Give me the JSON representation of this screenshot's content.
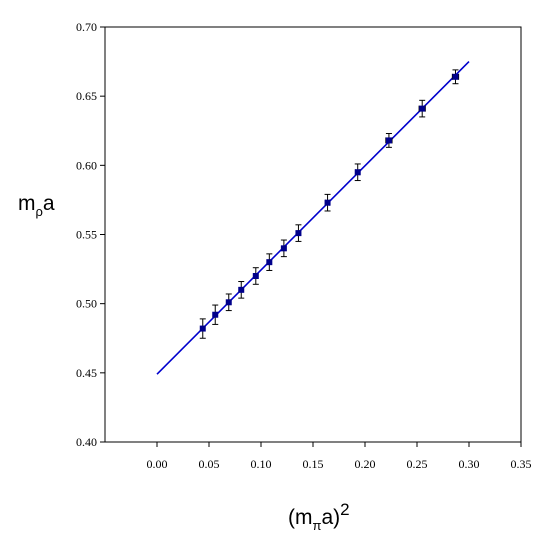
{
  "chart_data": {
    "type": "scatter",
    "xlabel": {
      "base": "(m",
      "sub": "π",
      "mid": "a)",
      "sup": "2"
    },
    "ylabel": {
      "base": "m",
      "sub": "ρ",
      "tail": "a"
    },
    "xlim": [
      -0.05,
      0.35
    ],
    "ylim": [
      0.4,
      0.7
    ],
    "x_ticks": [
      "0.00",
      "0.05",
      "0.10",
      "0.15",
      "0.20",
      "0.25",
      "0.30",
      "0.35"
    ],
    "y_ticks": [
      "0.40",
      "0.45",
      "0.50",
      "0.55",
      "0.60",
      "0.65",
      "0.70"
    ],
    "grid": false,
    "series": [
      {
        "type": "scatter",
        "color": "#00008b",
        "points": [
          {
            "x": 0.044,
            "y": 0.482,
            "yerr": 0.007,
            "xerr": 0.0
          },
          {
            "x": 0.056,
            "y": 0.492,
            "yerr": 0.007,
            "xerr": 0.0
          },
          {
            "x": 0.069,
            "y": 0.501,
            "yerr": 0.006,
            "xerr": 0.0
          },
          {
            "x": 0.081,
            "y": 0.51,
            "yerr": 0.006,
            "xerr": 0.0
          },
          {
            "x": 0.095,
            "y": 0.52,
            "yerr": 0.006,
            "xerr": 0.0
          },
          {
            "x": 0.108,
            "y": 0.53,
            "yerr": 0.006,
            "xerr": 0.0
          },
          {
            "x": 0.122,
            "y": 0.54,
            "yerr": 0.006,
            "xerr": 0.0
          },
          {
            "x": 0.136,
            "y": 0.551,
            "yerr": 0.006,
            "xerr": 0.0
          },
          {
            "x": 0.164,
            "y": 0.573,
            "yerr": 0.006,
            "xerr": 0.002
          },
          {
            "x": 0.193,
            "y": 0.595,
            "yerr": 0.006,
            "xerr": 0.002
          },
          {
            "x": 0.223,
            "y": 0.618,
            "yerr": 0.005,
            "xerr": 0.003
          },
          {
            "x": 0.255,
            "y": 0.641,
            "yerr": 0.006,
            "xerr": 0.003
          },
          {
            "x": 0.287,
            "y": 0.664,
            "yerr": 0.005,
            "xerr": 0.003
          }
        ]
      },
      {
        "type": "line",
        "color": "#0000cd",
        "points": [
          {
            "x": 0.0,
            "y": 0.449
          },
          {
            "x": 0.3,
            "y": 0.675
          }
        ]
      }
    ]
  }
}
